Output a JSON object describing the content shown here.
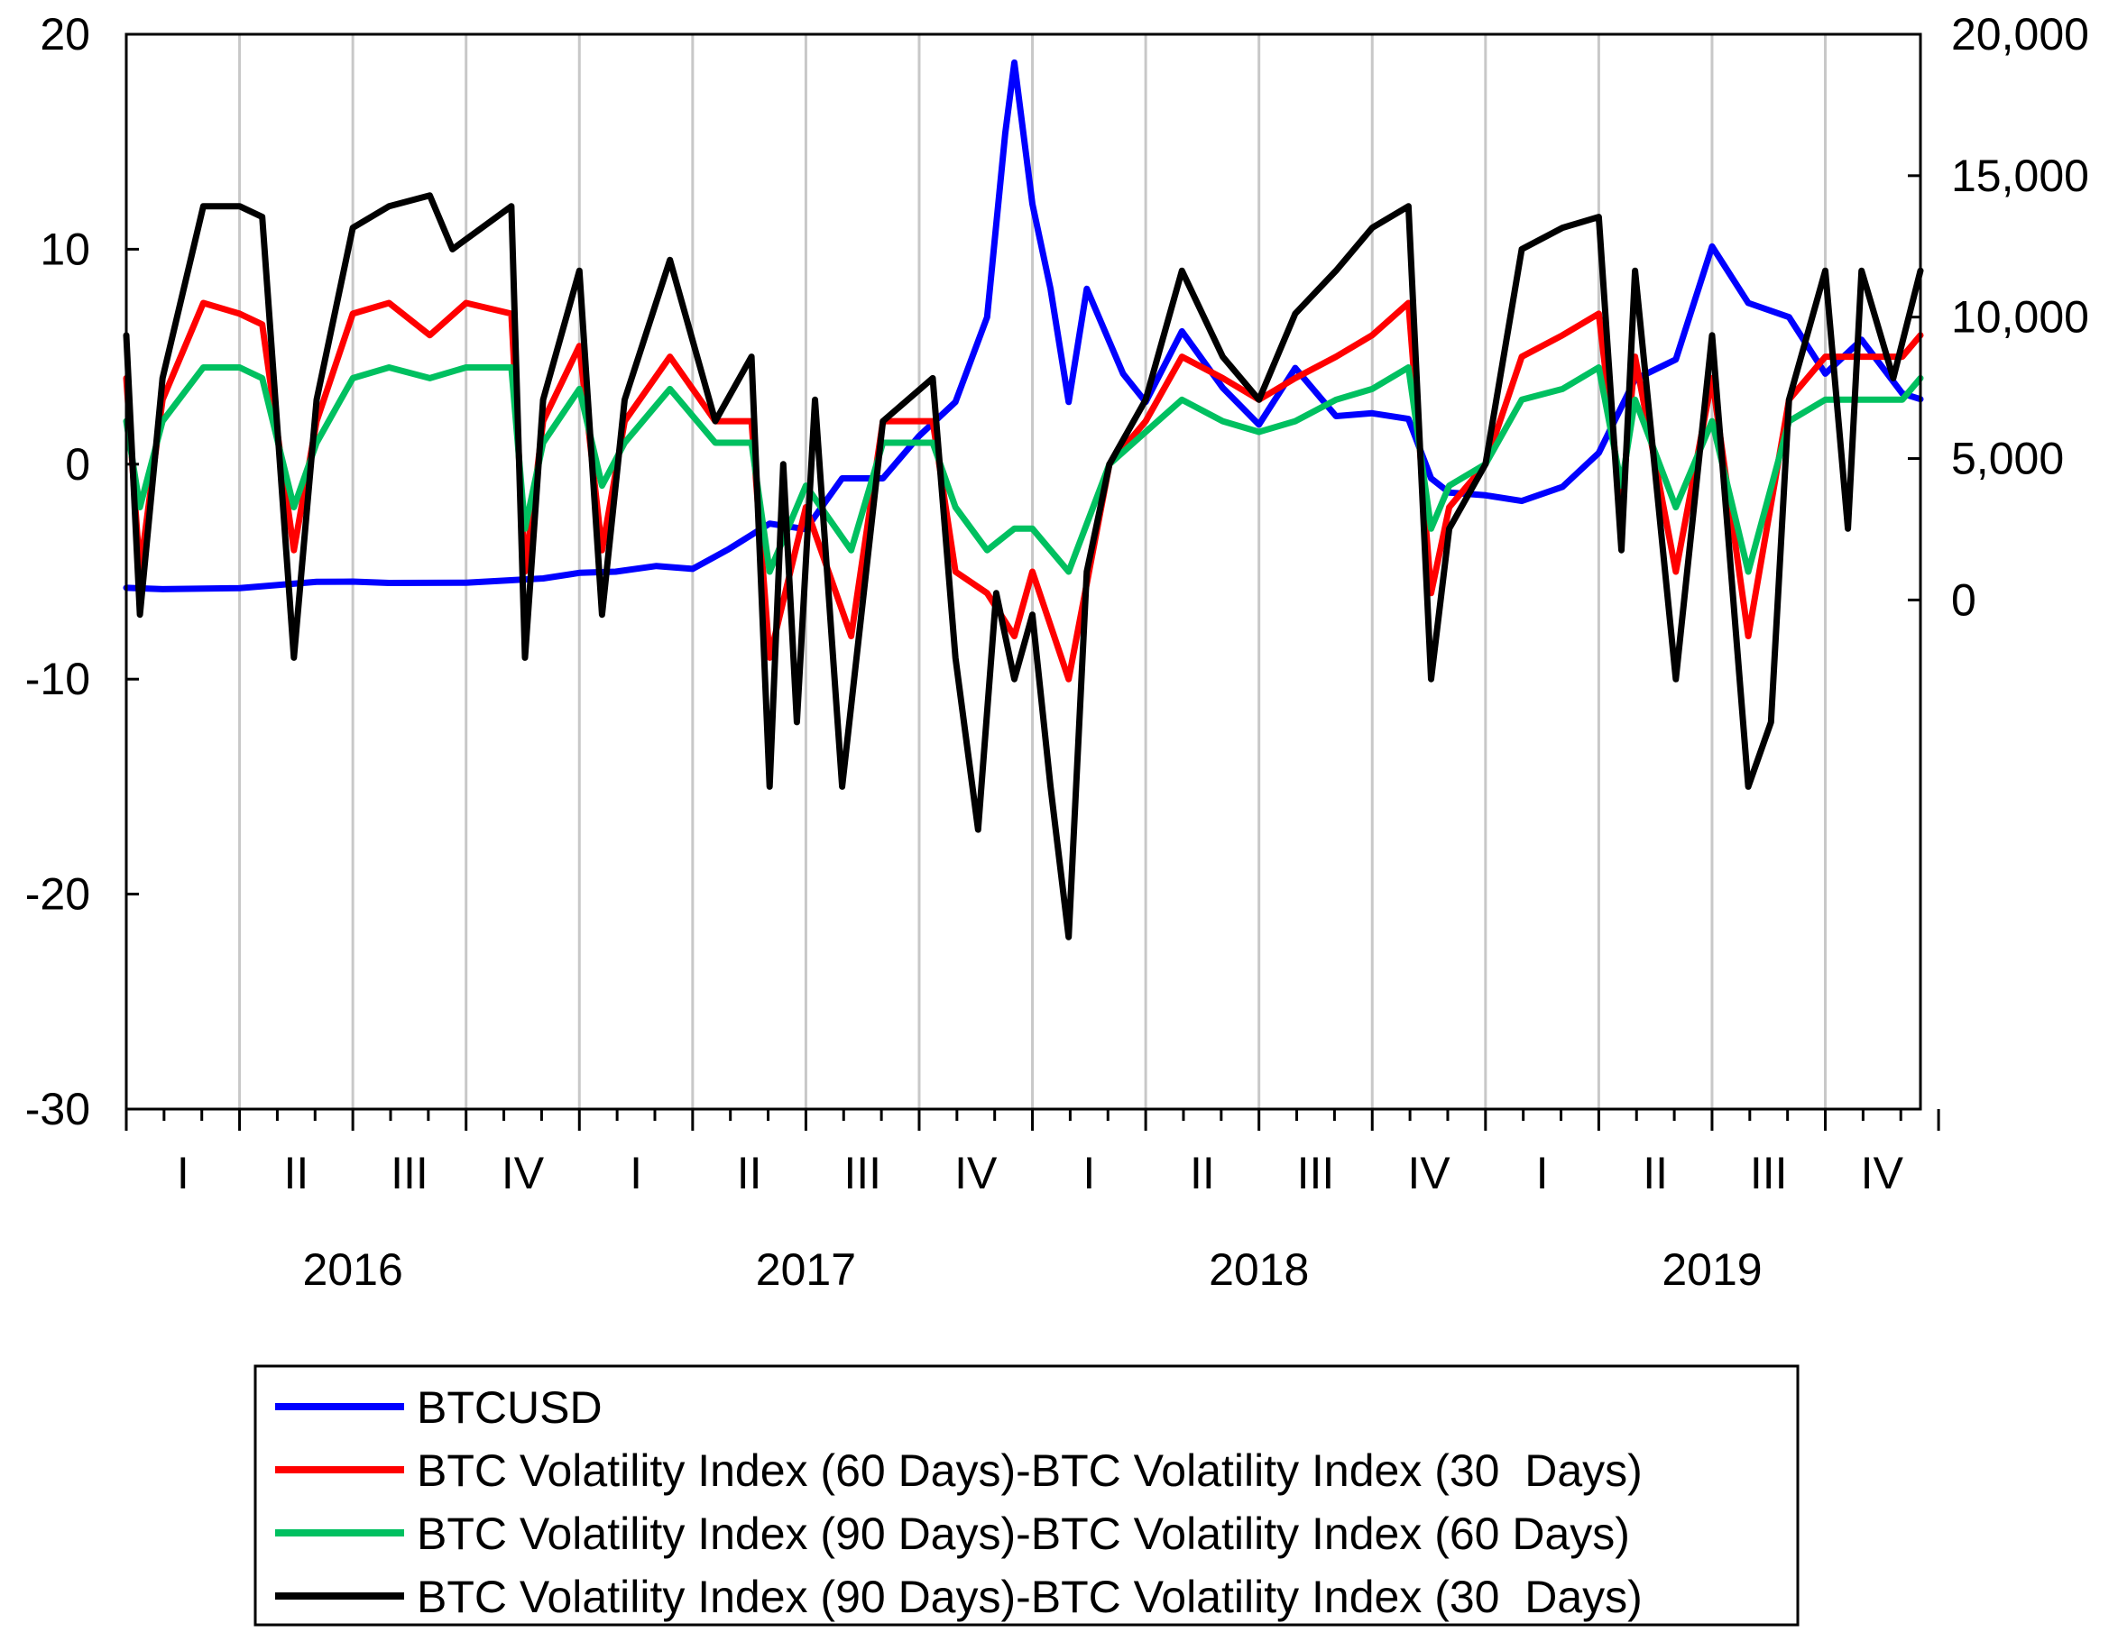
{
  "chart_data": {
    "type": "line",
    "title": "",
    "x": {
      "start": 2016.0,
      "end": 2019.96,
      "quarter_ticks": [
        "I",
        "II",
        "III",
        "IV",
        "I",
        "II",
        "III",
        "IV",
        "I",
        "II",
        "III",
        "IV",
        "I",
        "II",
        "III",
        "IV"
      ],
      "year_ticks": [
        "2016",
        "2017",
        "2018",
        "2019"
      ]
    },
    "left_axis": {
      "min": -30,
      "max": 20,
      "ticks": [
        -30,
        -20,
        -10,
        0,
        10,
        20
      ],
      "tick_labels": [
        "-30",
        "-20",
        "-10",
        "0",
        "10",
        "20"
      ]
    },
    "right_axis": {
      "min": -18000,
      "max": 20000,
      "ticks": [
        0,
        5000,
        10000,
        15000,
        20000
      ],
      "tick_labels": [
        "0",
        "5,000",
        "10,000",
        "15,000",
        "20,000"
      ]
    },
    "grid": "vertical",
    "legend_position": "bottom",
    "series": [
      {
        "name": "BTCUSD",
        "axis": "right",
        "color": "#0000ff",
        "points": [
          [
            2016.0,
            430
          ],
          [
            2016.08,
            380
          ],
          [
            2016.25,
            420
          ],
          [
            2016.42,
            640
          ],
          [
            2016.5,
            650
          ],
          [
            2016.58,
            600
          ],
          [
            2016.75,
            610
          ],
          [
            2016.92,
            760
          ],
          [
            2017.0,
            960
          ],
          [
            2017.08,
            1000
          ],
          [
            2017.17,
            1200
          ],
          [
            2017.25,
            1100
          ],
          [
            2017.33,
            1800
          ],
          [
            2017.42,
            2700
          ],
          [
            2017.5,
            2500
          ],
          [
            2017.58,
            4300
          ],
          [
            2017.67,
            4300
          ],
          [
            2017.75,
            5800
          ],
          [
            2017.83,
            7000
          ],
          [
            2017.9,
            10000
          ],
          [
            2017.94,
            16500
          ],
          [
            2017.96,
            19000
          ],
          [
            2018.0,
            14000
          ],
          [
            2018.04,
            11000
          ],
          [
            2018.08,
            7000
          ],
          [
            2018.12,
            11000
          ],
          [
            2018.2,
            8000
          ],
          [
            2018.25,
            7000
          ],
          [
            2018.33,
            9500
          ],
          [
            2018.42,
            7500
          ],
          [
            2018.5,
            6200
          ],
          [
            2018.58,
            8200
          ],
          [
            2018.67,
            6500
          ],
          [
            2018.75,
            6600
          ],
          [
            2018.83,
            6400
          ],
          [
            2018.88,
            4300
          ],
          [
            2018.92,
            3800
          ],
          [
            2019.0,
            3700
          ],
          [
            2019.08,
            3500
          ],
          [
            2019.17,
            4000
          ],
          [
            2019.25,
            5200
          ],
          [
            2019.33,
            7800
          ],
          [
            2019.42,
            8500
          ],
          [
            2019.5,
            12500
          ],
          [
            2019.58,
            10500
          ],
          [
            2019.67,
            10000
          ],
          [
            2019.75,
            8000
          ],
          [
            2019.83,
            9200
          ],
          [
            2019.92,
            7300
          ],
          [
            2019.96,
            7100
          ]
        ]
      },
      {
        "name": "BTC Volatility Index (60 Days)-BTC Volatility Index (30  Days)",
        "axis": "left",
        "color": "#ff0000",
        "points": [
          [
            2016.0,
            4
          ],
          [
            2016.03,
            -5
          ],
          [
            2016.08,
            3
          ],
          [
            2016.17,
            7.5
          ],
          [
            2016.25,
            7
          ],
          [
            2016.3,
            6.5
          ],
          [
            2016.37,
            -4
          ],
          [
            2016.42,
            2
          ],
          [
            2016.5,
            7
          ],
          [
            2016.58,
            7.5
          ],
          [
            2016.67,
            6
          ],
          [
            2016.75,
            7.5
          ],
          [
            2016.85,
            7
          ],
          [
            2016.88,
            -5
          ],
          [
            2016.92,
            2
          ],
          [
            2017.0,
            5.5
          ],
          [
            2017.05,
            -4
          ],
          [
            2017.1,
            2
          ],
          [
            2017.2,
            5
          ],
          [
            2017.3,
            2
          ],
          [
            2017.38,
            2
          ],
          [
            2017.42,
            -9
          ],
          [
            2017.5,
            -2
          ],
          [
            2017.6,
            -8
          ],
          [
            2017.67,
            2
          ],
          [
            2017.78,
            2
          ],
          [
            2017.83,
            -5
          ],
          [
            2017.9,
            -6
          ],
          [
            2017.96,
            -8
          ],
          [
            2018.0,
            -5
          ],
          [
            2018.08,
            -10
          ],
          [
            2018.17,
            0
          ],
          [
            2018.25,
            2
          ],
          [
            2018.33,
            5
          ],
          [
            2018.42,
            4
          ],
          [
            2018.5,
            3
          ],
          [
            2018.58,
            4
          ],
          [
            2018.67,
            5
          ],
          [
            2018.75,
            6
          ],
          [
            2018.83,
            7.5
          ],
          [
            2018.88,
            -6
          ],
          [
            2018.92,
            -2
          ],
          [
            2019.0,
            0
          ],
          [
            2019.08,
            5
          ],
          [
            2019.17,
            6
          ],
          [
            2019.25,
            7
          ],
          [
            2019.3,
            -2
          ],
          [
            2019.33,
            5
          ],
          [
            2019.42,
            -5
          ],
          [
            2019.5,
            4
          ],
          [
            2019.58,
            -8
          ],
          [
            2019.67,
            3
          ],
          [
            2019.75,
            5
          ],
          [
            2019.83,
            5
          ],
          [
            2019.92,
            5
          ],
          [
            2019.96,
            6
          ]
        ]
      },
      {
        "name": "BTC Volatility Index (90 Days)-BTC Volatility Index (60 Days)",
        "axis": "left",
        "color": "#00c060",
        "points": [
          [
            2016.0,
            2
          ],
          [
            2016.03,
            -2
          ],
          [
            2016.08,
            2
          ],
          [
            2016.17,
            4.5
          ],
          [
            2016.25,
            4.5
          ],
          [
            2016.3,
            4
          ],
          [
            2016.37,
            -2
          ],
          [
            2016.42,
            1
          ],
          [
            2016.5,
            4
          ],
          [
            2016.58,
            4.5
          ],
          [
            2016.67,
            4
          ],
          [
            2016.75,
            4.5
          ],
          [
            2016.85,
            4.5
          ],
          [
            2016.88,
            -3
          ],
          [
            2016.92,
            1
          ],
          [
            2017.0,
            3.5
          ],
          [
            2017.05,
            -1
          ],
          [
            2017.1,
            1
          ],
          [
            2017.2,
            3.5
          ],
          [
            2017.3,
            1
          ],
          [
            2017.38,
            1
          ],
          [
            2017.42,
            -5
          ],
          [
            2017.5,
            -1
          ],
          [
            2017.6,
            -4
          ],
          [
            2017.67,
            1
          ],
          [
            2017.78,
            1
          ],
          [
            2017.83,
            -2
          ],
          [
            2017.9,
            -4
          ],
          [
            2017.96,
            -3
          ],
          [
            2018.0,
            -3
          ],
          [
            2018.08,
            -5
          ],
          [
            2018.17,
            0
          ],
          [
            2018.25,
            1.5
          ],
          [
            2018.33,
            3
          ],
          [
            2018.42,
            2
          ],
          [
            2018.5,
            1.5
          ],
          [
            2018.58,
            2
          ],
          [
            2018.67,
            3
          ],
          [
            2018.75,
            3.5
          ],
          [
            2018.83,
            4.5
          ],
          [
            2018.88,
            -3
          ],
          [
            2018.92,
            -1
          ],
          [
            2019.0,
            0
          ],
          [
            2019.08,
            3
          ],
          [
            2019.17,
            3.5
          ],
          [
            2019.25,
            4.5
          ],
          [
            2019.3,
            -1
          ],
          [
            2019.33,
            3
          ],
          [
            2019.42,
            -2
          ],
          [
            2019.5,
            2
          ],
          [
            2019.58,
            -5
          ],
          [
            2019.67,
            2
          ],
          [
            2019.75,
            3
          ],
          [
            2019.83,
            3
          ],
          [
            2019.92,
            3
          ],
          [
            2019.96,
            4
          ]
        ]
      },
      {
        "name": "BTC Volatility Index (90 Days)-BTC Volatility Index (30  Days)",
        "axis": "left",
        "color": "#000000",
        "points": [
          [
            2016.0,
            6
          ],
          [
            2016.03,
            -7
          ],
          [
            2016.08,
            4
          ],
          [
            2016.17,
            12
          ],
          [
            2016.25,
            12
          ],
          [
            2016.3,
            11.5
          ],
          [
            2016.37,
            -9
          ],
          [
            2016.42,
            3
          ],
          [
            2016.5,
            11
          ],
          [
            2016.58,
            12
          ],
          [
            2016.67,
            12.5
          ],
          [
            2016.72,
            10
          ],
          [
            2016.85,
            12
          ],
          [
            2016.88,
            -9
          ],
          [
            2016.92,
            3
          ],
          [
            2017.0,
            9
          ],
          [
            2017.05,
            -7
          ],
          [
            2017.1,
            3
          ],
          [
            2017.2,
            9.5
          ],
          [
            2017.3,
            2
          ],
          [
            2017.38,
            5
          ],
          [
            2017.42,
            -15
          ],
          [
            2017.45,
            0
          ],
          [
            2017.48,
            -12
          ],
          [
            2017.52,
            3
          ],
          [
            2017.58,
            -15
          ],
          [
            2017.67,
            2
          ],
          [
            2017.78,
            4
          ],
          [
            2017.83,
            -9
          ],
          [
            2017.88,
            -17
          ],
          [
            2017.92,
            -6
          ],
          [
            2017.96,
            -10
          ],
          [
            2018.0,
            -7
          ],
          [
            2018.04,
            -15
          ],
          [
            2018.08,
            -22
          ],
          [
            2018.12,
            -5
          ],
          [
            2018.17,
            0
          ],
          [
            2018.25,
            3
          ],
          [
            2018.33,
            9
          ],
          [
            2018.42,
            5
          ],
          [
            2018.5,
            3
          ],
          [
            2018.58,
            7
          ],
          [
            2018.67,
            9
          ],
          [
            2018.75,
            11
          ],
          [
            2018.83,
            12
          ],
          [
            2018.88,
            -10
          ],
          [
            2018.92,
            -3
          ],
          [
            2019.0,
            0
          ],
          [
            2019.08,
            10
          ],
          [
            2019.17,
            11
          ],
          [
            2019.25,
            11.5
          ],
          [
            2019.3,
            -4
          ],
          [
            2019.33,
            9
          ],
          [
            2019.42,
            -10
          ],
          [
            2019.5,
            6
          ],
          [
            2019.58,
            -15
          ],
          [
            2019.63,
            -12
          ],
          [
            2019.67,
            3
          ],
          [
            2019.75,
            9
          ],
          [
            2019.8,
            -3
          ],
          [
            2019.83,
            9
          ],
          [
            2019.9,
            4
          ],
          [
            2019.96,
            9
          ]
        ]
      }
    ]
  }
}
